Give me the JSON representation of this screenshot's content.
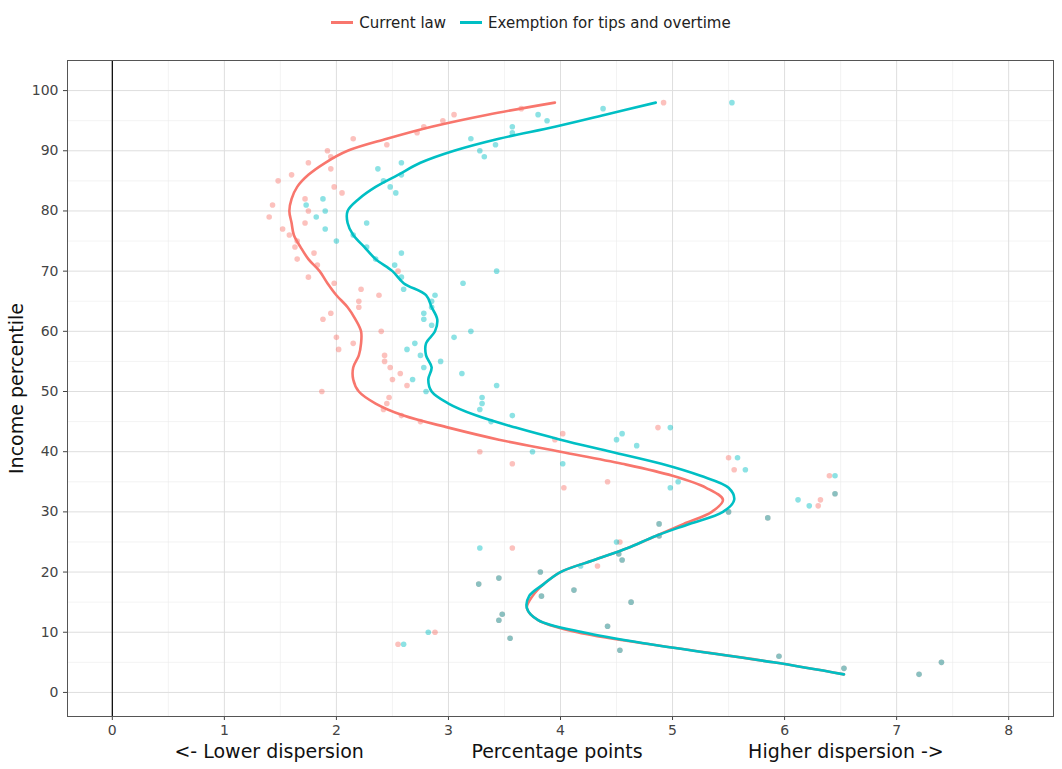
{
  "chart_data": {
    "type": "scatter",
    "ylabel": "Income percentile",
    "xlabel": "Percentage points",
    "xlabel_left": "<- Lower dispersion",
    "xlabel_right": "Higher dispersion ->",
    "xlim": [
      -0.4,
      8.4
    ],
    "ylim": [
      -4,
      105
    ],
    "xticks": [
      0,
      1,
      2,
      3,
      4,
      5,
      6,
      7,
      8
    ],
    "yticks": [
      0,
      10,
      20,
      30,
      40,
      50,
      60,
      70,
      80,
      90,
      100
    ],
    "x_reference": 0,
    "grid": true,
    "legend": "top",
    "series": [
      {
        "name": "Current law",
        "color": "#F8766D",
        "points": {
          "y": [
            3,
            4,
            5,
            6,
            7,
            8,
            9,
            10,
            11,
            12,
            13,
            15,
            16,
            17,
            18,
            19,
            20,
            21,
            22,
            23,
            24,
            25,
            26,
            28,
            29,
            30,
            31,
            32,
            33,
            34,
            35,
            36,
            37,
            38,
            39,
            40,
            42,
            43,
            44,
            45,
            46,
            47,
            48,
            49,
            50,
            51,
            52,
            53,
            54,
            55,
            56,
            57,
            58,
            59,
            60,
            62,
            63,
            64,
            65,
            66,
            67,
            68,
            69,
            70,
            71,
            72,
            73,
            74,
            75,
            76,
            77,
            78,
            79,
            80,
            81,
            82,
            83,
            84,
            85,
            86,
            87,
            88,
            89,
            90,
            91,
            92,
            93,
            94,
            95,
            96,
            97,
            98
          ],
          "x": [
            7.2,
            6.53,
            7.4,
            5.95,
            4.53,
            2.55,
            3.55,
            2.88,
            4.42,
            3.45,
            3.48,
            4.63,
            3.83,
            4.12,
            3.27,
            3.45,
            3.82,
            4.33,
            4.55,
            4.52,
            3.57,
            4.53,
            4.88,
            4.88,
            5.85,
            5.5,
            6.3,
            6.32,
            6.45,
            4.03,
            4.42,
            6.4,
            5.55,
            3.57,
            5.5,
            3.28,
            3.95,
            4.02,
            4.87,
            2.75,
            2.58,
            2.42,
            2.45,
            2.47,
            1.87,
            2.63,
            2.5,
            2.57,
            2.48,
            2.43,
            2.43,
            2.02,
            2.15,
            2.0,
            2.4,
            1.88,
            1.95,
            2.2,
            2.2,
            2.38,
            2.22,
            1.98,
            1.75,
            2.55,
            1.83,
            1.65,
            1.8,
            1.63,
            1.65,
            1.58,
            1.52,
            1.72,
            1.4,
            1.75,
            1.43,
            1.72,
            2.05,
            1.98,
            1.48,
            1.6,
            1.95,
            1.75,
            1.95,
            1.92,
            2.45,
            2.15,
            2.72,
            2.78,
            2.95,
            3.05,
            3.65,
            4.92
          ]
        },
        "line": {
          "y": [
            3,
            5,
            8,
            10,
            12,
            14,
            16,
            18,
            20,
            22,
            24,
            26,
            28,
            30,
            32,
            34,
            36,
            38,
            40,
            42,
            44,
            46,
            48,
            50,
            52,
            54,
            56,
            58,
            60,
            62,
            64,
            66,
            68,
            70,
            72,
            74,
            76,
            78,
            80,
            82,
            84,
            86,
            88,
            90,
            92,
            94,
            96,
            98
          ],
          "x": [
            6.53,
            5.9,
            4.8,
            4.15,
            3.8,
            3.7,
            3.75,
            3.85,
            4.0,
            4.3,
            4.6,
            4.85,
            5.1,
            5.35,
            5.45,
            5.3,
            5.0,
            4.55,
            4.0,
            3.45,
            3.0,
            2.6,
            2.35,
            2.2,
            2.15,
            2.15,
            2.2,
            2.22,
            2.22,
            2.17,
            2.1,
            2.0,
            1.92,
            1.85,
            1.75,
            1.68,
            1.62,
            1.6,
            1.58,
            1.6,
            1.65,
            1.75,
            1.9,
            2.1,
            2.45,
            2.85,
            3.35,
            3.95
          ]
        }
      },
      {
        "name": "Exemption for tips and overtime",
        "color": "#00BFC4",
        "points": {
          "y": [
            3,
            4,
            5,
            6,
            7,
            8,
            9,
            10,
            11,
            12,
            13,
            15,
            16,
            17,
            18,
            19,
            20,
            21,
            22,
            23,
            24,
            25,
            26,
            28,
            29,
            30,
            31,
            32,
            33,
            34,
            35,
            36,
            37,
            38,
            39,
            40,
            41,
            42,
            43,
            44,
            45,
            46,
            47,
            48,
            49,
            50,
            51,
            52,
            53,
            54,
            55,
            56,
            57,
            58,
            59,
            60,
            61,
            62,
            63,
            64,
            65,
            66,
            67,
            68,
            69,
            70,
            71,
            72,
            73,
            74,
            75,
            76,
            77,
            78,
            79,
            80,
            81,
            82,
            83,
            84,
            85,
            86,
            87,
            88,
            89,
            90,
            91,
            92,
            93,
            94,
            95,
            96,
            97,
            98
          ],
          "x": [
            7.2,
            6.53,
            7.4,
            5.95,
            4.53,
            2.6,
            3.55,
            2.82,
            4.42,
            3.45,
            3.48,
            4.63,
            3.83,
            4.12,
            3.27,
            3.45,
            3.82,
            4.18,
            4.55,
            4.52,
            3.28,
            4.5,
            4.88,
            4.88,
            5.85,
            5.5,
            6.22,
            6.12,
            6.45,
            4.98,
            5.05,
            6.45,
            5.65,
            4.02,
            5.58,
            3.75,
            4.68,
            4.5,
            4.55,
            4.98,
            3.38,
            3.57,
            3.28,
            3.3,
            3.3,
            2.8,
            3.43,
            2.68,
            3.12,
            2.78,
            2.93,
            2.75,
            2.63,
            2.7,
            3.05,
            3.2,
            2.85,
            2.78,
            2.78,
            2.85,
            2.85,
            2.88,
            2.6,
            3.13,
            2.58,
            3.43,
            2.52,
            2.35,
            2.58,
            2.27,
            2.0,
            2.15,
            1.9,
            2.27,
            1.82,
            1.9,
            1.73,
            1.88,
            2.53,
            2.48,
            2.42,
            2.58,
            2.37,
            2.58,
            3.32,
            3.28,
            3.42,
            3.2,
            3.57,
            3.57,
            3.88,
            3.8,
            4.38,
            5.53
          ]
        },
        "line": {
          "y": [
            3,
            5,
            8,
            10,
            12,
            14,
            16,
            18,
            20,
            22,
            24,
            26,
            28,
            30,
            32,
            34,
            36,
            38,
            40,
            42,
            44,
            46,
            48,
            50,
            52,
            54,
            56,
            58,
            60,
            62,
            64,
            66,
            68,
            70,
            72,
            74,
            76,
            78,
            80,
            82,
            84,
            86,
            88,
            90,
            92,
            94,
            96,
            98
          ],
          "x": [
            6.53,
            5.9,
            4.8,
            4.2,
            3.8,
            3.7,
            3.72,
            3.85,
            4.0,
            4.3,
            4.6,
            4.85,
            5.15,
            5.45,
            5.55,
            5.5,
            5.25,
            4.9,
            4.45,
            4.0,
            3.6,
            3.25,
            3.0,
            2.85,
            2.82,
            2.85,
            2.8,
            2.8,
            2.88,
            2.9,
            2.85,
            2.8,
            2.6,
            2.5,
            2.35,
            2.25,
            2.15,
            2.1,
            2.1,
            2.2,
            2.35,
            2.55,
            2.75,
            3.05,
            3.45,
            3.95,
            4.4,
            4.85
          ]
        }
      }
    ]
  }
}
